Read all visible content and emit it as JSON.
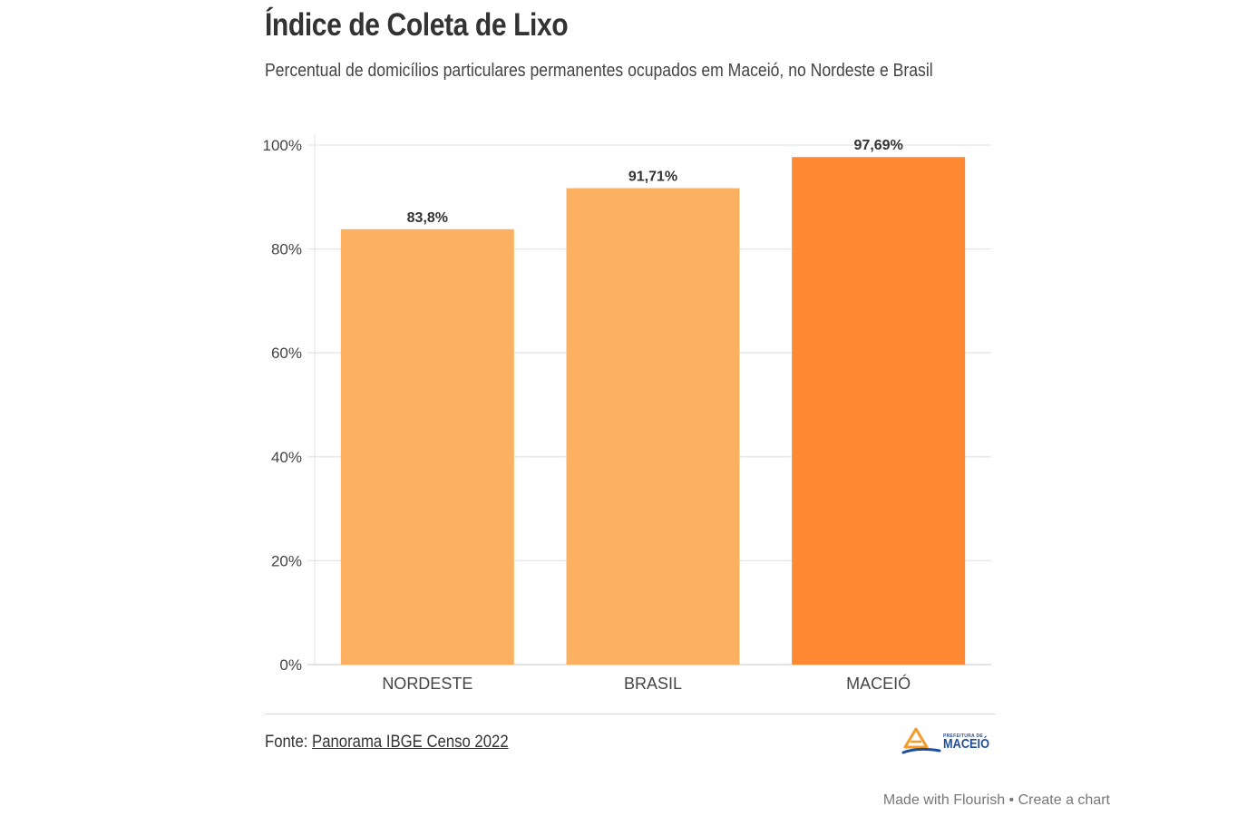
{
  "header": {
    "title": "Índice de Coleta de Lixo",
    "subtitle": "Percentual de domicílios particulares permanentes ocupados em Maceió, no Nordeste e Brasil"
  },
  "chart_data": {
    "type": "bar",
    "categories": [
      "NORDESTE",
      "BRASIL",
      "MACEIÓ"
    ],
    "values": [
      83.8,
      91.71,
      97.69
    ],
    "value_labels": [
      "83,8%",
      "91,71%",
      "97,69%"
    ],
    "colors": [
      "#fcb062",
      "#fcb062",
      "#ff8833"
    ],
    "ylim": [
      0,
      100
    ],
    "yticks": [
      0,
      20,
      40,
      60,
      80,
      100
    ],
    "ytick_labels": [
      "0%",
      "20%",
      "40%",
      "60%",
      "80%",
      "100%"
    ],
    "grid": true,
    "xlabel": "",
    "ylabel": ""
  },
  "footer": {
    "source_prefix": "Fonte: ",
    "source_link": "Panorama IBGE Censo 2022",
    "logo_small": "PREFEITURA DE",
    "logo_name": "MACEIÓ"
  },
  "attribution": {
    "made_with": "Made with Flourish",
    "separator": " • ",
    "create": "Create a chart"
  }
}
